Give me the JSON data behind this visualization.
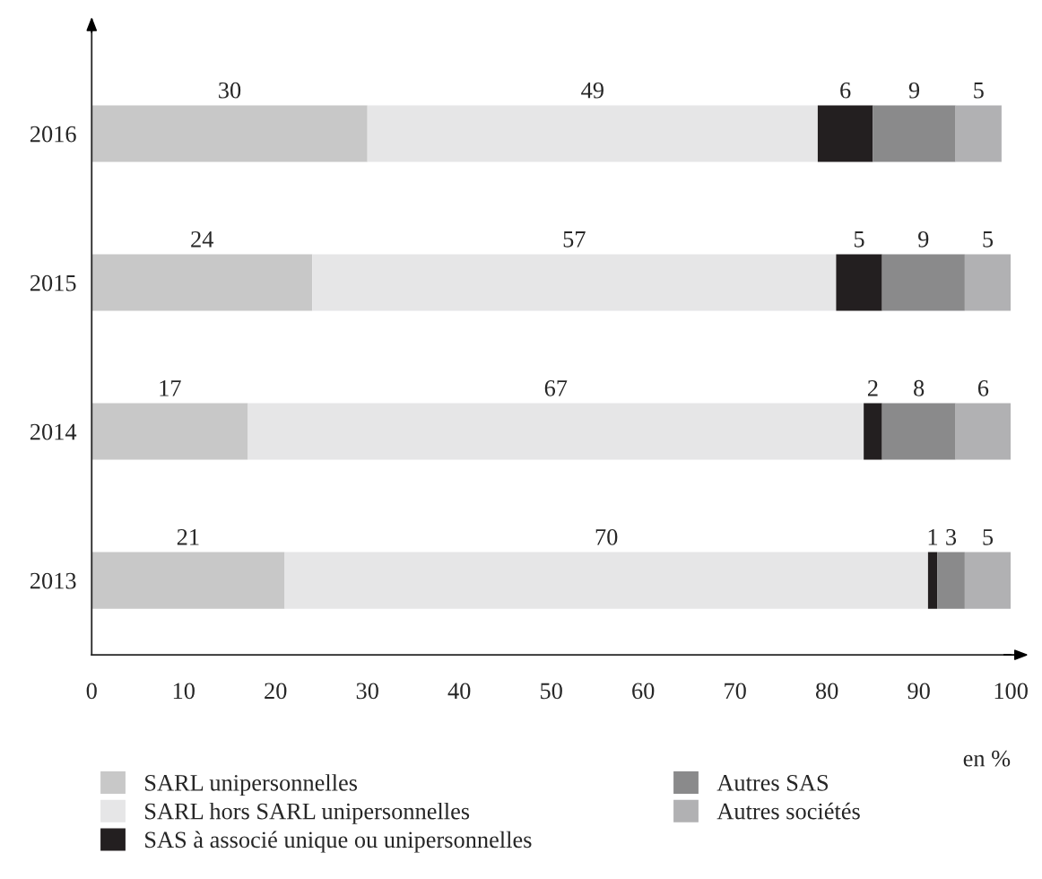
{
  "chart_data": {
    "type": "bar",
    "orientation": "horizontal",
    "stacked": true,
    "data_labels": true,
    "legend": "bottom",
    "grid": false,
    "xlabel": "en %",
    "categories": [
      "2016",
      "2015",
      "2014",
      "2013"
    ],
    "series": [
      {
        "name": "SARL unipersonnelles",
        "color": "#c8c8c8",
        "values": [
          30,
          24,
          17,
          21
        ]
      },
      {
        "name": "SARL hors SARL unipersonnelles",
        "color": "#e6e6e7",
        "values": [
          49,
          57,
          67,
          70
        ]
      },
      {
        "name": "SAS à associé unique ou unipersonnelles",
        "color": "#231f20",
        "values": [
          6,
          5,
          2,
          1
        ]
      },
      {
        "name": "Autres SAS",
        "color": "#8a8a8b",
        "values": [
          9,
          9,
          8,
          3
        ]
      },
      {
        "name": "Autres sociétés",
        "color": "#b1b1b3",
        "values": [
          5,
          5,
          6,
          5
        ]
      }
    ],
    "xlim": [
      0,
      100
    ],
    "xticks": [
      0,
      10,
      20,
      30,
      40,
      50,
      60,
      70,
      80,
      90,
      100
    ]
  }
}
